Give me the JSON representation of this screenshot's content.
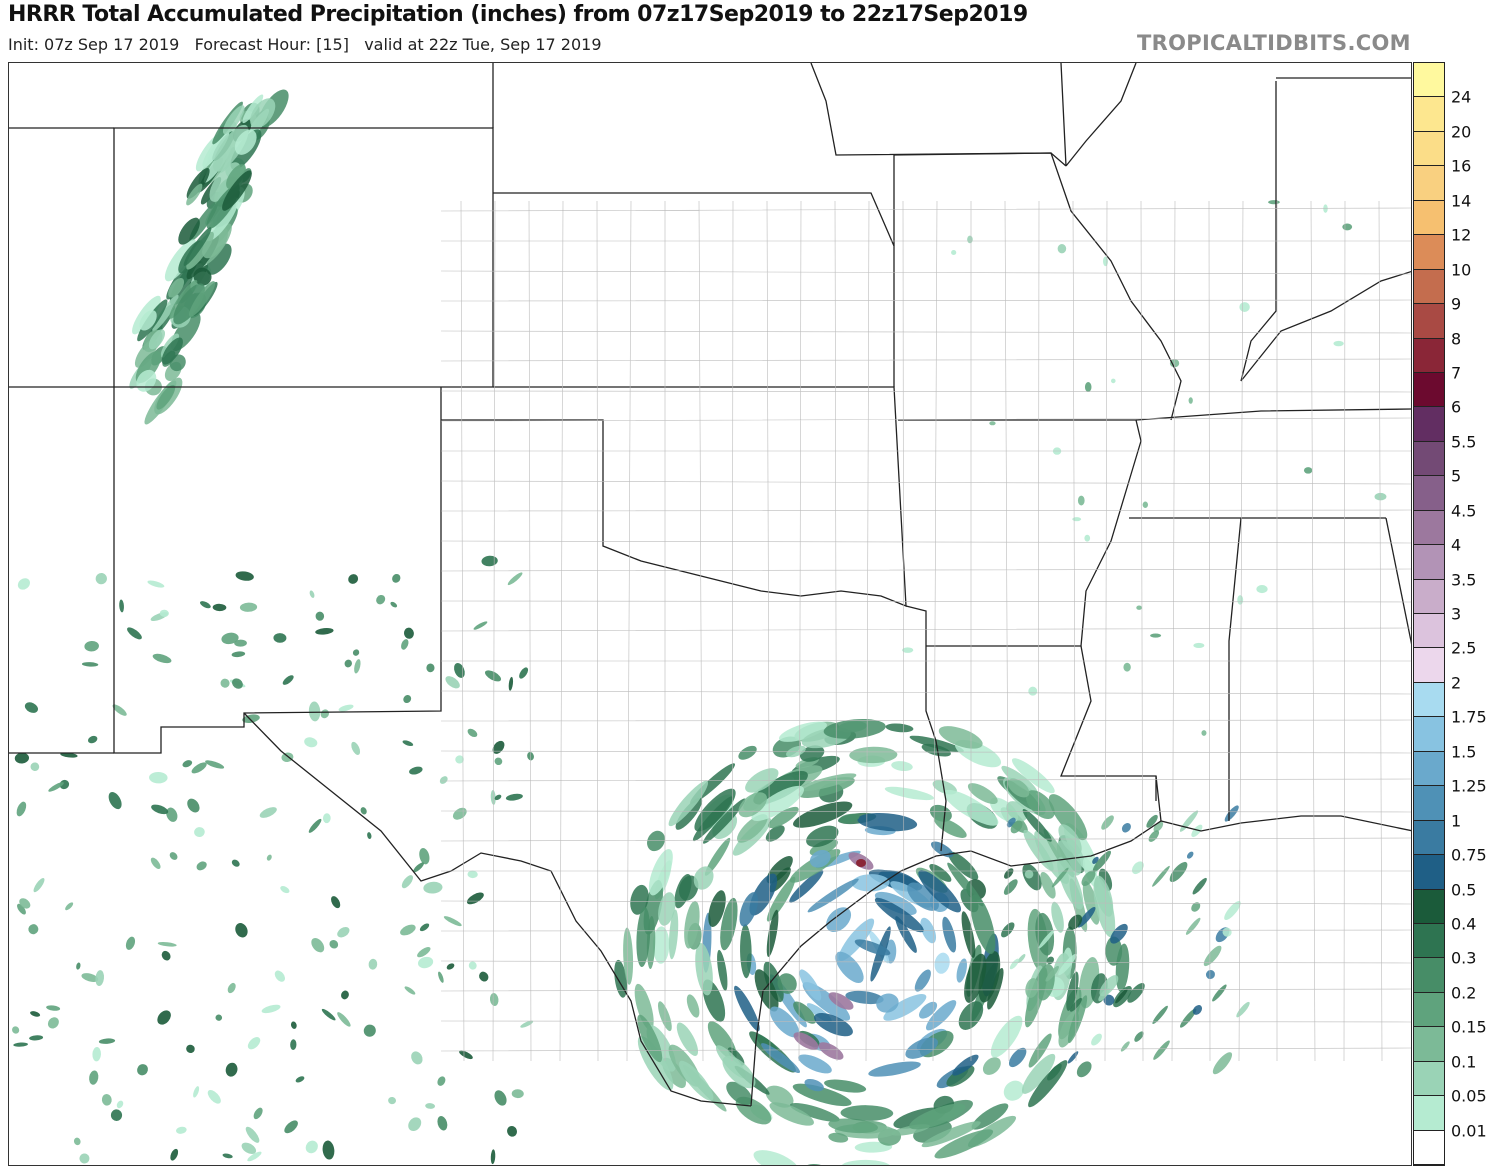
{
  "header": {
    "title": "HRRR Total Accumulated Precipitation (inches) from 07z17Sep2019 to 22z17Sep2019",
    "subtitle": "Init: 07z Sep 17 2019   Forecast Hour: [15]   valid at 22z Tue, Sep 17 2019",
    "brand": "TROPICALTIDBITS.COM"
  },
  "colorbar": {
    "unit": "inches",
    "labels": [
      "24",
      "20",
      "16",
      "14",
      "12",
      "10",
      "9",
      "8",
      "7",
      "6",
      "5.5",
      "5",
      "4.5",
      "4",
      "3.5",
      "3",
      "2.5",
      "2",
      "1.75",
      "1.5",
      "1.25",
      "1",
      "0.75",
      "0.5",
      "0.4",
      "0.3",
      "0.2",
      "0.15",
      "0.1",
      "0.05",
      "0.01"
    ],
    "colors": [
      "#fff99e",
      "#fde78f",
      "#fbdd88",
      "#f9d080",
      "#f6c070",
      "#dc8c58",
      "#c46d4e",
      "#a94a44",
      "#8a2637",
      "#6c0a2f",
      "#622e62",
      "#734a75",
      "#86608a",
      "#9c789e",
      "#b293b6",
      "#c9adca",
      "#dcc3dd",
      "#ecd7ec",
      "#a8dbf0",
      "#88c3e1",
      "#6aa9cc",
      "#4f91b6",
      "#3a7ba1",
      "#1f5f86",
      "#1b5b3a",
      "#2e7451",
      "#478d67",
      "#5fa37d",
      "#7cba97",
      "#9ad3b6",
      "#b5ebd1",
      "#ffffff"
    ]
  }
}
